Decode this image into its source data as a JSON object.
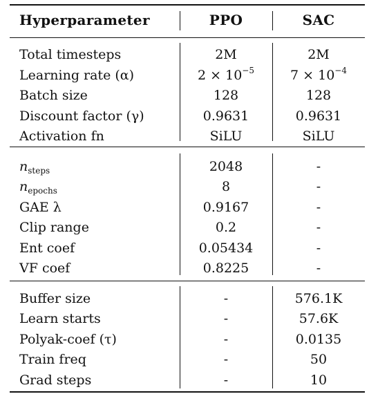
{
  "header": {
    "col1": "Hyperparameter",
    "col2": "PPO",
    "col3": "SAC"
  },
  "groups": [
    {
      "rows": [
        {
          "label": "Total timesteps",
          "ppo": "2M",
          "sac": "2M"
        },
        {
          "label": "Learning rate (α)",
          "ppo": "2 × 10",
          "ppo_exp": "−5",
          "sac": "7 × 10",
          "sac_exp": "−4"
        },
        {
          "label": "Batch size",
          "ppo": "128",
          "sac": "128"
        },
        {
          "label": "Discount factor (γ)",
          "ppo": "0.9631",
          "sac": "0.9631"
        },
        {
          "label": "Activation fn",
          "ppo": "SiLU",
          "sac": "SiLU"
        }
      ]
    },
    {
      "rows": [
        {
          "label_main": "n",
          "label_sub": "steps",
          "ppo": "2048",
          "sac": "-"
        },
        {
          "label_main": "n",
          "label_sub": "epochs",
          "ppo": "8",
          "sac": "-"
        },
        {
          "label": "GAE λ",
          "ppo": "0.9167",
          "sac": "-"
        },
        {
          "label": "Clip range",
          "ppo": "0.2",
          "sac": "-"
        },
        {
          "label": "Ent coef",
          "ppo": "0.05434",
          "sac": "-"
        },
        {
          "label": "VF coef",
          "ppo": "0.8225",
          "sac": "-"
        }
      ]
    },
    {
      "rows": [
        {
          "label": "Buffer size",
          "ppo": "-",
          "sac": "576.1K"
        },
        {
          "label": "Learn starts",
          "ppo": "-",
          "sac": "57.6K"
        },
        {
          "label": "Polyak-coef (τ)",
          "ppo": "-",
          "sac": "0.0135"
        },
        {
          "label": "Train freq",
          "ppo": "-",
          "sac": "50"
        },
        {
          "label": "Grad steps",
          "ppo": "-",
          "sac": "10"
        }
      ]
    }
  ]
}
